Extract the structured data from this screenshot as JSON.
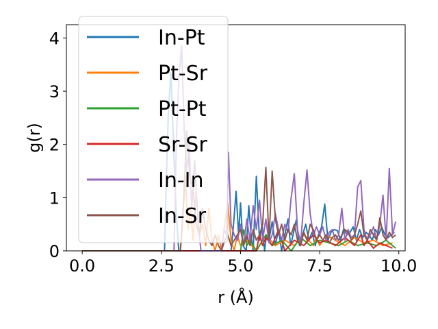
{
  "chart_data": {
    "type": "line",
    "xlabel": "r (Å)",
    "ylabel": "g(r)",
    "xlim": [
      -0.5,
      10.2
    ],
    "ylim": [
      0,
      4.25
    ],
    "xticks": [
      0.0,
      2.5,
      5.0,
      7.5,
      10.0
    ],
    "xtick_labels": [
      "0.0",
      "2.5",
      "5.0",
      "7.5",
      "10.0"
    ],
    "yticks": [
      0,
      1,
      2,
      3,
      4
    ],
    "ytick_labels": [
      "0",
      "1",
      "2",
      "3",
      "4"
    ],
    "grid": false,
    "legend_position": "upper-left",
    "series": [
      {
        "name": "In-Pt",
        "color": "#1f77b4",
        "x": [
          0,
          2.6,
          2.65,
          2.72,
          2.8,
          2.88,
          2.96,
          3.05,
          3.8,
          4.7,
          4.78,
          4.86,
          4.94,
          5.0,
          5.08,
          5.18,
          5.26,
          5.34,
          5.4,
          5.5,
          5.6,
          5.68,
          5.76,
          5.82,
          5.9,
          6.0,
          6.1,
          6.2,
          6.3,
          6.4,
          6.5,
          6.58,
          6.66,
          6.76,
          6.86,
          6.96,
          7.06,
          7.16,
          7.26,
          7.36,
          7.46,
          7.56,
          7.66,
          7.76,
          7.86,
          7.96,
          8.06,
          8.16,
          8.26,
          8.36,
          8.46,
          8.56,
          8.66,
          8.76,
          8.86,
          8.96,
          9.06,
          9.16,
          9.26,
          9.36,
          9.46,
          9.56,
          9.66,
          9.76,
          9.86
        ],
        "y": [
          0,
          0,
          1.2,
          2.6,
          3.35,
          2.1,
          0.8,
          0,
          0,
          0,
          0.5,
          1.12,
          0.3,
          0.9,
          0.1,
          0,
          0.85,
          0.25,
          0,
          1.4,
          0.2,
          0.5,
          0,
          0.3,
          0.2,
          0.55,
          0.1,
          0.4,
          0,
          0.3,
          0.6,
          0.1,
          0.3,
          0.58,
          0.1,
          0.3,
          0.5,
          0.2,
          0.35,
          0.1,
          0.3,
          0.45,
          0.88,
          0.2,
          0.35,
          0.4,
          0.38,
          0.2,
          0.42,
          0.3,
          0.35,
          0.45,
          0.2,
          0.4,
          0.25,
          0.35,
          0.3,
          0.2,
          0.4,
          0.3,
          0.45,
          0.3,
          0.25,
          0.3,
          0.35
        ]
      },
      {
        "name": "Pt-Sr",
        "color": "#ff7f0e",
        "x": [
          0,
          3.1,
          3.18,
          3.26,
          3.34,
          3.42,
          3.5,
          3.6,
          3.7,
          3.8,
          3.9,
          4.0,
          4.1,
          4.2,
          4.3,
          4.4,
          4.5,
          4.6,
          4.7,
          4.8,
          4.9,
          5.0,
          5.2,
          5.5,
          5.8,
          6.1,
          6.4,
          6.7,
          7.0,
          7.3,
          7.4,
          7.5,
          7.7,
          8.0,
          8.3,
          8.6,
          8.9,
          9.2,
          9.5,
          9.8
        ],
        "y": [
          0,
          0,
          0.6,
          1.4,
          0.4,
          0.8,
          0.2,
          1.1,
          0.3,
          0.5,
          0.1,
          0.8,
          0.2,
          0,
          0.3,
          0,
          0.5,
          0.9,
          0.2,
          0,
          0.3,
          0.1,
          0.2,
          0,
          0.3,
          0.1,
          0.2,
          0.1,
          0.3,
          0.1,
          0.25,
          0.1,
          0.3,
          0.2,
          0.1,
          0.25,
          0.15,
          0.2,
          0.1,
          0.15
        ]
      },
      {
        "name": "Pt-Pt",
        "color": "#2ca02c",
        "x": [
          0,
          5.0,
          5.1,
          5.2,
          5.3,
          5.5,
          5.8,
          6.0,
          6.3,
          6.6,
          6.9,
          7.2,
          7.5,
          7.8,
          8.1,
          8.4,
          8.7,
          9.0,
          9.3,
          9.6,
          9.8,
          9.9
        ],
        "y": [
          0,
          0,
          0.4,
          0.1,
          0.2,
          0,
          0.3,
          0.1,
          0.2,
          0,
          0.25,
          0.1,
          0.2,
          0.15,
          0.1,
          0.2,
          0.1,
          0.15,
          0.1,
          0.2,
          0.1,
          0.05
        ]
      },
      {
        "name": "Sr-Sr",
        "color": "#d62728",
        "x": [
          0,
          5.5,
          5.6,
          5.7,
          5.8,
          6.0,
          6.2,
          6.4,
          6.7,
          7.0,
          7.3,
          7.5,
          7.7,
          8.0,
          8.3,
          8.6,
          8.8,
          8.9,
          9.0,
          9.2,
          9.4,
          9.6,
          9.8
        ],
        "y": [
          0,
          0,
          0.3,
          0.1,
          0.25,
          0.1,
          0.4,
          0,
          0.2,
          0.1,
          0.3,
          0.15,
          0.2,
          0.1,
          0.25,
          0.1,
          0.3,
          0.1,
          0.2,
          0.05,
          0.15,
          0.1,
          0.05
        ]
      },
      {
        "name": "In-In",
        "color": "#9467bd",
        "x": [
          0,
          2.9,
          2.98,
          3.06,
          3.14,
          3.22,
          3.3,
          3.38,
          3.46,
          3.55,
          3.65,
          3.75,
          3.85,
          4.4,
          4.48,
          4.56,
          4.62,
          4.7,
          4.8,
          4.9,
          5.0,
          5.1,
          5.2,
          5.3,
          5.4,
          5.5,
          5.6,
          5.7,
          5.8,
          5.9,
          6.0,
          6.1,
          6.2,
          6.3,
          6.4,
          6.5,
          6.6,
          6.7,
          6.8,
          6.9,
          7.0,
          7.1,
          7.2,
          7.3,
          7.4,
          7.5,
          7.6,
          7.7,
          7.8,
          7.9,
          8.0,
          8.1,
          8.2,
          8.3,
          8.4,
          8.5,
          8.6,
          8.7,
          8.8,
          8.9,
          9.0,
          9.1,
          9.2,
          9.3,
          9.4,
          9.5,
          9.6,
          9.7,
          9.8,
          9.9
        ],
        "y": [
          0,
          0,
          2.2,
          3.3,
          3.85,
          2.3,
          1.5,
          2.0,
          0.8,
          1.7,
          0.6,
          0,
          0,
          0,
          0.4,
          0.3,
          1.85,
          0.5,
          0.3,
          0.2,
          0.5,
          0.1,
          0.6,
          0.2,
          0.85,
          0.4,
          0.95,
          0.2,
          0.6,
          0.15,
          0.3,
          0.7,
          0.4,
          0.2,
          0.5,
          0.35,
          1.0,
          1.45,
          0.4,
          0.15,
          0.9,
          1.52,
          0.7,
          0.3,
          0.45,
          0.3,
          0.45,
          0.2,
          0.35,
          0.4,
          0.2,
          0.3,
          0.8,
          0.2,
          0.4,
          0.25,
          0.3,
          1.2,
          1.32,
          0.4,
          0.2,
          0.3,
          0.45,
          0.2,
          0.5,
          1.05,
          0.2,
          1.55,
          0.3,
          0.55
        ]
      },
      {
        "name": "In-Sr",
        "color": "#8c564b",
        "x": [
          0,
          3.1,
          3.2,
          3.3,
          3.4,
          3.5,
          3.6,
          3.7,
          3.8,
          3.9,
          4.0,
          4.1,
          4.2,
          4.3,
          4.4,
          4.5,
          4.6,
          4.7,
          4.8,
          4.9,
          5.0,
          5.1,
          5.2,
          5.3,
          5.4,
          5.5,
          5.6,
          5.7,
          5.8,
          5.9,
          6.0,
          6.1,
          6.2,
          6.3,
          6.4,
          6.5,
          6.6,
          6.7,
          6.8,
          6.9,
          7.0,
          7.1,
          7.2,
          7.3,
          7.4,
          7.5,
          7.6,
          7.7,
          7.8,
          7.9,
          8.0,
          8.1,
          8.2,
          8.3,
          8.4,
          8.5,
          8.6,
          8.7,
          8.8,
          8.9,
          9.0,
          9.1,
          9.2,
          9.3,
          9.4,
          9.5,
          9.6,
          9.7,
          9.8,
          9.9
        ],
        "y": [
          0,
          0,
          0.9,
          2.25,
          1.4,
          1.2,
          0.5,
          0.3,
          0.8,
          0.4,
          0.2,
          0.1,
          0.3,
          0.1,
          0,
          0.2,
          0.3,
          0.1,
          0.2,
          0.3,
          0.4,
          0.1,
          0.3,
          0.1,
          0.4,
          0.2,
          0.3,
          0.5,
          1.57,
          0.2,
          1.5,
          0.6,
          0.3,
          0.5,
          0.2,
          0.4,
          0.3,
          0.5,
          0.2,
          0.1,
          0.35,
          0.2,
          0.5,
          0.4,
          0.2,
          0.3,
          0.2,
          0.3,
          0.15,
          0.25,
          0.3,
          0.2,
          0.3,
          0.4,
          0.35,
          0.2,
          0.3,
          0.5,
          0.75,
          0.3,
          0.2,
          0.4,
          0.3,
          0.2,
          0.62,
          0.3,
          0.2,
          0.35,
          0.25,
          0.3
        ]
      }
    ]
  }
}
